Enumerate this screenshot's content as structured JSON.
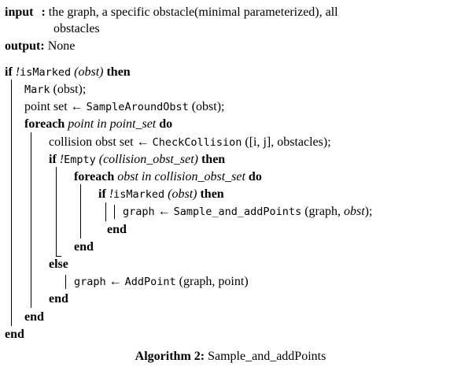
{
  "header": {
    "input_kw": "input",
    "input_colon": ":",
    "input_text_1": "the graph, a specific obstacle(minimal parameterized), all",
    "input_text_2": "obstacles",
    "output_kw": "output:",
    "output_text": "None"
  },
  "keywords": {
    "if": "if",
    "then": "then",
    "foreach": "foreach",
    "do": "do",
    "end": "end",
    "else": "else",
    "not": "!"
  },
  "symbols": {
    "assign": "←"
  },
  "code": {
    "isMarked": "isMarked",
    "obst": "(obst)",
    "mark_fn": "Mark",
    "mark_arg": "(obst);",
    "point_set": "point set",
    "sample_fn": "SampleAroundObst",
    "sample_arg": "(obst);",
    "point_in_set": "point in point_set",
    "collision_set": "collision obst set",
    "check_fn": "CheckCollision",
    "check_arg": "([i, j], obstacles);",
    "empty_fn": "Empty",
    "empty_arg": "(collision_obst_set)",
    "obst_in_set": "obst in collision_obst_set",
    "graph": "graph",
    "sample_add_fn": "Sample_and_addPoints",
    "sample_add_arg_open": "(graph,",
    "sample_add_arg_obst": "obst",
    "sample_add_arg_close": ");",
    "addpoint_fn": "AddPoint",
    "addpoint_arg": "(graph, point)"
  },
  "caption": {
    "label": "Algorithm 2:",
    "name": "Sample_and_addPoints"
  }
}
